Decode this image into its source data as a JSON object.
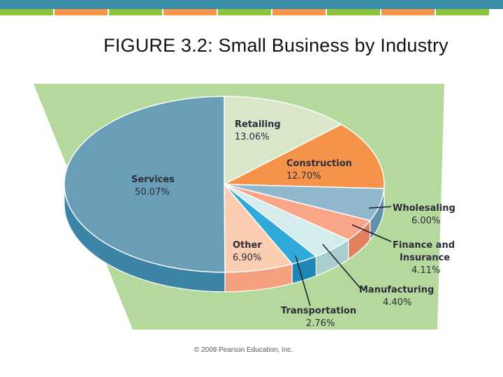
{
  "page": {
    "title": "FIGURE 3.2: Small Business by Industry",
    "credit": "© 2009 Pearson Education, Inc."
  },
  "colors": {
    "top_band": "#3a8ea8",
    "accent_green": "#8cc43d",
    "accent_orange": "#f7954a",
    "panel_green": "#b5d99c"
  },
  "chart_data": {
    "type": "pie",
    "title": "",
    "categories": [
      "Retailing",
      "Construction",
      "Wholesaling",
      "Finance and Insurance",
      "Manufacturing",
      "Transportation",
      "Other",
      "Services"
    ],
    "values": [
      13.06,
      12.7,
      6.0,
      4.11,
      4.4,
      2.76,
      6.9,
      50.07
    ],
    "labels": {
      "Retailing": {
        "name": [
          "Retailing"
        ],
        "pct": "13.06%"
      },
      "Construction": {
        "name": [
          "Construction"
        ],
        "pct": "12.70%"
      },
      "Wholesaling": {
        "name": [
          "Wholesaling"
        ],
        "pct": "6.00%"
      },
      "Finance and Insurance": {
        "name": [
          "Finance and",
          "Insurance"
        ],
        "pct": "4.11%"
      },
      "Manufacturing": {
        "name": [
          "Manufacturing"
        ],
        "pct": "4.40%"
      },
      "Transportation": {
        "name": [
          "Transportation"
        ],
        "pct": "2.76%"
      },
      "Other": {
        "name": [
          "Other"
        ],
        "pct": "6.90%"
      },
      "Services": {
        "name": [
          "Services"
        ],
        "pct": "50.07%"
      }
    },
    "colors": [
      "#d9e6c9",
      "#f6934a",
      "#8fb8cc",
      "#f9a587",
      "#d4ecec",
      "#2ea9d8",
      "#fbcdb1",
      "#6a9eb7"
    ],
    "side_colors": [
      "#b6c6a5",
      "#d8722f",
      "#5f91a9",
      "#e0805f",
      "#aacdcd",
      "#1f86b5",
      "#f5a07e",
      "#3b84a6"
    ],
    "legend": "callouts"
  }
}
